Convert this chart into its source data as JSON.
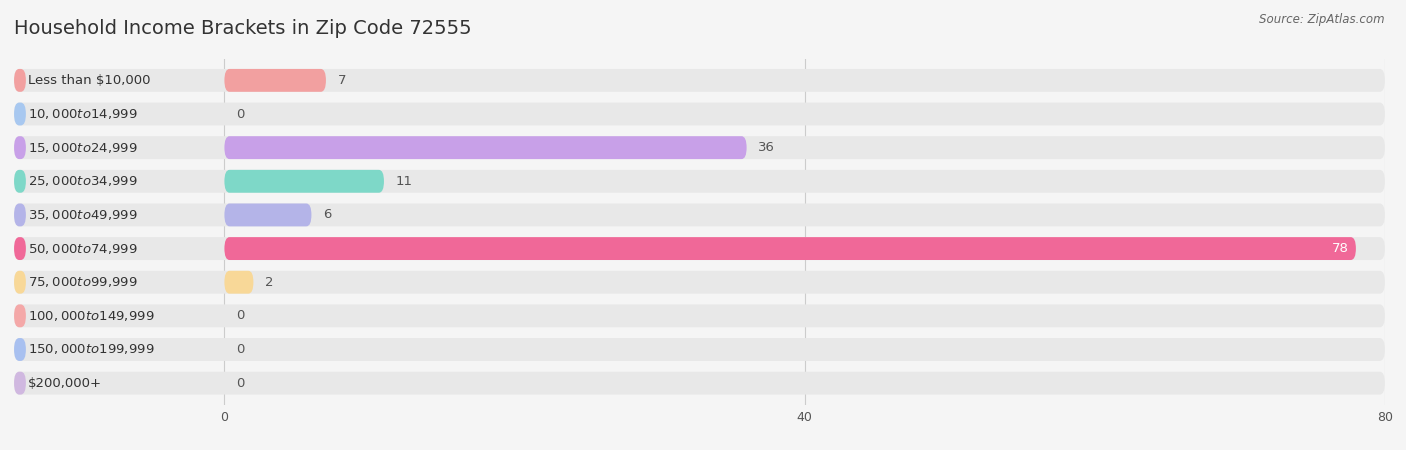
{
  "title": "Household Income Brackets in Zip Code 72555",
  "source": "Source: ZipAtlas.com",
  "categories": [
    "Less than $10,000",
    "$10,000 to $14,999",
    "$15,000 to $24,999",
    "$25,000 to $34,999",
    "$35,000 to $49,999",
    "$50,000 to $74,999",
    "$75,000 to $99,999",
    "$100,000 to $149,999",
    "$150,000 to $199,999",
    "$200,000+"
  ],
  "values": [
    7,
    0,
    36,
    11,
    6,
    78,
    2,
    0,
    0,
    0
  ],
  "bar_colors": [
    "#F2A0A0",
    "#A8C8F0",
    "#C8A0E8",
    "#7ED8C8",
    "#B4B4E8",
    "#F06898",
    "#F8D898",
    "#F4A8A8",
    "#A8C0F0",
    "#D0B8E0"
  ],
  "background_color": "#f5f5f5",
  "bar_bg_color": "#e8e8e8",
  "xlim_max": 80,
  "xticks": [
    0,
    40,
    80
  ],
  "title_fontsize": 14,
  "label_fontsize": 9.5,
  "value_fontsize": 9.5
}
